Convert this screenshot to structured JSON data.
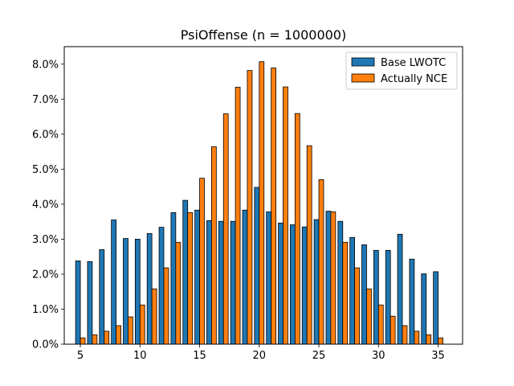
{
  "chart_data": {
    "type": "bar",
    "title": "PsiOffense (n = 1000000)",
    "xlabel": "",
    "ylabel": "",
    "x": [
      5,
      6,
      7,
      8,
      9,
      10,
      11,
      12,
      13,
      14,
      15,
      16,
      17,
      18,
      19,
      20,
      21,
      22,
      23,
      24,
      25,
      26,
      27,
      28,
      29,
      30,
      31,
      32,
      33,
      34,
      35
    ],
    "xlim": [
      3.65,
      37.05
    ],
    "ylim": [
      0,
      8.5
    ],
    "x_ticks": [
      5,
      10,
      15,
      20,
      25,
      30,
      35
    ],
    "y_ticks": [
      {
        "value": 0,
        "label": "0.0%"
      },
      {
        "value": 1,
        "label": "1.0%"
      },
      {
        "value": 2,
        "label": "2.0%"
      },
      {
        "value": 3,
        "label": "3.0%"
      },
      {
        "value": 4,
        "label": "4.0%"
      },
      {
        "value": 5,
        "label": "5.0%"
      },
      {
        "value": 6,
        "label": "6.0%"
      },
      {
        "value": 7,
        "label": "7.0%"
      },
      {
        "value": 8,
        "label": "8.0%"
      }
    ],
    "grid": false,
    "legend": "top-right",
    "series": [
      {
        "name": "Base LWOTC",
        "color": "#1f77b4",
        "values": [
          2.38,
          2.36,
          2.7,
          3.55,
          3.02,
          3.0,
          3.16,
          3.34,
          3.76,
          4.11,
          3.83,
          3.53,
          3.51,
          3.51,
          3.83,
          4.48,
          3.78,
          3.46,
          3.41,
          3.35,
          3.56,
          3.8,
          3.51,
          3.05,
          2.84,
          2.68,
          2.68,
          3.14,
          2.43,
          2.01,
          2.07
        ]
      },
      {
        "name": "Actually NCE",
        "color": "#ff7f0e",
        "values": [
          0.18,
          0.27,
          0.37,
          0.53,
          0.78,
          1.12,
          1.58,
          2.18,
          2.91,
          3.76,
          4.74,
          5.64,
          6.58,
          7.34,
          7.82,
          8.07,
          7.89,
          7.35,
          6.59,
          5.67,
          4.7,
          3.78,
          2.91,
          2.18,
          1.58,
          1.12,
          0.8,
          0.53,
          0.37,
          0.27,
          0.18
        ]
      }
    ]
  }
}
